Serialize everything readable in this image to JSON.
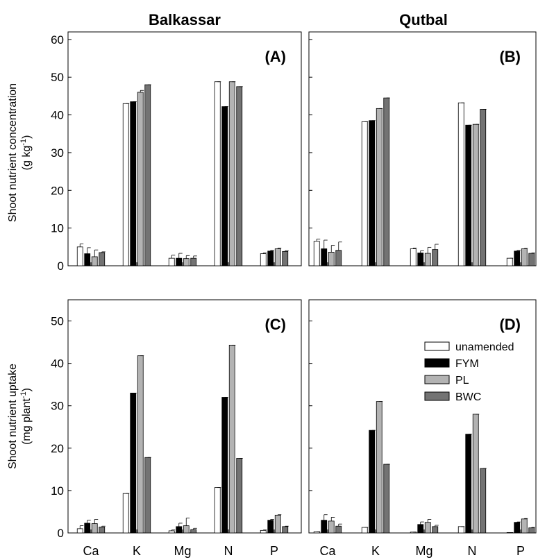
{
  "columns": [
    "Balkassar",
    "Qutbal"
  ],
  "rows": [
    {
      "ylabel_line1": "Shoot nutrient concentration",
      "ylabel_line2": "(g kg",
      "ylabel_sup": "-1",
      "ylabel_close": ")"
    },
    {
      "ylabel_line1": "Shoot nutrient uptake",
      "ylabel_line2": "(mg plant",
      "ylabel_sup": "-1",
      "ylabel_close": ")"
    }
  ],
  "legend": {
    "entries": [
      "unamended",
      "FYM",
      "PL",
      "BWC"
    ],
    "placement": "panel D, right",
    "colors": [
      "#ffffff",
      "#000000",
      "#b3b3b3",
      "#737373"
    ]
  },
  "chart_data": [
    {
      "type": "bar",
      "panel": "(A)",
      "categories": [
        "Ca",
        "K",
        "Mg",
        "N",
        "P"
      ],
      "ylim": [
        0,
        62
      ],
      "yticks": [
        0,
        10,
        20,
        30,
        40,
        50,
        60
      ],
      "series": [
        {
          "name": "unamended",
          "values": [
            5.0,
            43.0,
            2.0,
            48.8,
            3.2
          ],
          "errors": [
            0.8,
            0.0,
            0.8,
            0.0,
            0.2
          ]
        },
        {
          "name": "FYM",
          "values": [
            3.2,
            43.5,
            2.0,
            42.2,
            3.9
          ],
          "errors": [
            1.6,
            0.0,
            1.3,
            0.0,
            0.2
          ]
        },
        {
          "name": "PL",
          "values": [
            2.4,
            46.0,
            1.9,
            48.8,
            4.5
          ],
          "errors": [
            1.8,
            0.5,
            0.8,
            0.0,
            0.2
          ]
        },
        {
          "name": "BWC",
          "values": [
            3.5,
            48.0,
            2.0,
            47.5,
            3.8
          ],
          "errors": [
            0.2,
            0.0,
            0.6,
            0.0,
            0.2
          ]
        }
      ]
    },
    {
      "type": "bar",
      "panel": "(B)",
      "categories": [
        "Ca",
        "K",
        "Mg",
        "N",
        "P"
      ],
      "ylim": [
        0,
        62
      ],
      "yticks": [
        0,
        10,
        20,
        30,
        40,
        50,
        60
      ],
      "series": [
        {
          "name": "unamended",
          "values": [
            6.5,
            38.2,
            4.5,
            43.2,
            2.0
          ],
          "errors": [
            0.6,
            0.0,
            0.2,
            0.0,
            0.0
          ]
        },
        {
          "name": "FYM",
          "values": [
            4.5,
            38.5,
            3.4,
            37.3,
            3.9
          ],
          "errors": [
            2.3,
            0.0,
            0.6,
            0.0,
            0.2
          ]
        },
        {
          "name": "PL",
          "values": [
            3.6,
            41.7,
            3.3,
            37.5,
            4.5
          ],
          "errors": [
            1.8,
            0.0,
            1.6,
            0.0,
            0.1
          ]
        },
        {
          "name": "BWC",
          "values": [
            4.1,
            44.5,
            4.3,
            41.5,
            3.3
          ],
          "errors": [
            2.2,
            0.0,
            1.4,
            0.0,
            0.1
          ]
        }
      ]
    },
    {
      "type": "bar",
      "panel": "(C)",
      "categories": [
        "Ca",
        "K",
        "Mg",
        "N",
        "P"
      ],
      "ylim": [
        0,
        55
      ],
      "yticks": [
        0,
        10,
        20,
        30,
        40,
        50
      ],
      "series": [
        {
          "name": "unamended",
          "values": [
            1.0,
            9.3,
            0.5,
            10.7,
            0.6
          ],
          "errors": [
            0.7,
            0.0,
            0.2,
            0.0,
            0.1
          ]
        },
        {
          "name": "FYM",
          "values": [
            2.3,
            33.0,
            1.5,
            32.0,
            3.0
          ],
          "errors": [
            0.7,
            0.0,
            0.8,
            0.0,
            0.2
          ]
        },
        {
          "name": "PL",
          "values": [
            2.2,
            41.8,
            1.7,
            44.3,
            4.2
          ],
          "errors": [
            1.0,
            0.0,
            1.8,
            0.0,
            0.1
          ]
        },
        {
          "name": "BWC",
          "values": [
            1.4,
            17.8,
            0.8,
            17.6,
            1.5
          ],
          "errors": [
            0.2,
            0.0,
            0.3,
            0.0,
            0.1
          ]
        }
      ]
    },
    {
      "type": "bar",
      "panel": "(D)",
      "categories": [
        "Ca",
        "K",
        "Mg",
        "N",
        "P"
      ],
      "ylim": [
        0,
        55
      ],
      "yticks": [
        0,
        10,
        20,
        30,
        40,
        50
      ],
      "series": [
        {
          "name": "unamended",
          "values": [
            0.3,
            1.3,
            0.2,
            1.5,
            0.1
          ],
          "errors": [
            0.0,
            0.0,
            0.0,
            0.0,
            0.0
          ]
        },
        {
          "name": "FYM",
          "values": [
            3.0,
            24.2,
            2.0,
            23.3,
            2.5
          ],
          "errors": [
            1.3,
            0.0,
            0.6,
            0.0,
            0.1
          ]
        },
        {
          "name": "PL",
          "values": [
            2.8,
            31.0,
            2.5,
            28.0,
            3.3
          ],
          "errors": [
            0.9,
            0.0,
            0.7,
            0.0,
            0.1
          ]
        },
        {
          "name": "BWC",
          "values": [
            1.6,
            16.2,
            1.5,
            15.2,
            1.2
          ],
          "errors": [
            0.5,
            0.0,
            0.3,
            0.0,
            0.1
          ]
        }
      ]
    }
  ]
}
